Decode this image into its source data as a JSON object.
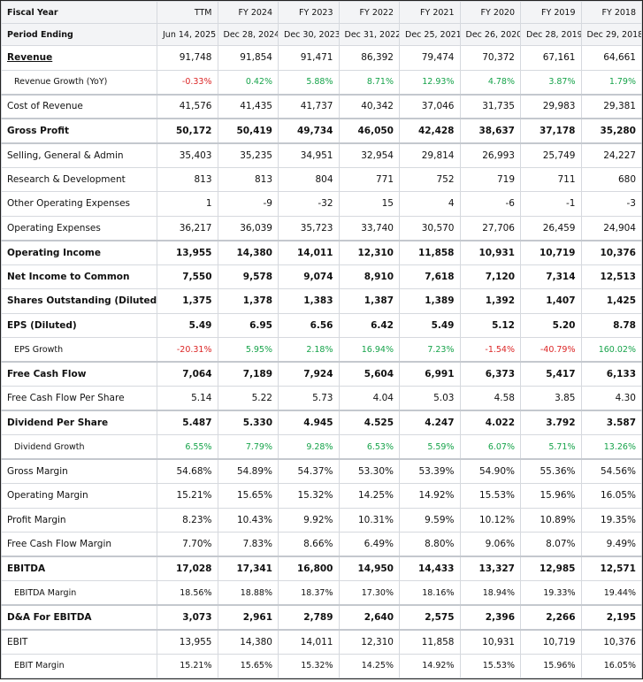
{
  "table": {
    "header": [
      [
        "Fiscal Year",
        "TTM",
        "FY 2024",
        "FY 2023",
        "FY 2022",
        "FY 2021",
        "FY 2020",
        "FY 2019",
        "FY 2018"
      ],
      [
        "Period Ending",
        "Jun 14, 2025",
        "Dec 28, 2024",
        "Dec 30, 2023",
        "Dec 31, 2022",
        "Dec 25, 2021",
        "Dec 26, 2020",
        "Dec 28, 2019",
        "Dec 29, 2018"
      ]
    ],
    "rows": [
      [
        "Revenue",
        "91,748",
        "91,854",
        "91,471",
        "86,392",
        "79,474",
        "70,372",
        "67,161",
        "64,661"
      ],
      [
        "Revenue Growth (YoY)",
        "-0.33%",
        "0.42%",
        "5.88%",
        "8.71%",
        "12.93%",
        "4.78%",
        "3.87%",
        "1.79%"
      ],
      [
        "Cost of Revenue",
        "41,576",
        "41,435",
        "41,737",
        "40,342",
        "37,046",
        "31,735",
        "29,983",
        "29,381"
      ],
      [
        "Gross Profit",
        "50,172",
        "50,419",
        "49,734",
        "46,050",
        "42,428",
        "38,637",
        "37,178",
        "35,280"
      ],
      [
        "Selling, General & Admin",
        "35,403",
        "35,235",
        "34,951",
        "32,954",
        "29,814",
        "26,993",
        "25,749",
        "24,227"
      ],
      [
        "Research & Development",
        "813",
        "813",
        "804",
        "771",
        "752",
        "719",
        "711",
        "680"
      ],
      [
        "Other Operating Expenses",
        "1",
        "-9",
        "-32",
        "15",
        "4",
        "-6",
        "-1",
        "-3"
      ],
      [
        "Operating Expenses",
        "36,217",
        "36,039",
        "35,723",
        "33,740",
        "30,570",
        "27,706",
        "26,459",
        "24,904"
      ],
      [
        "Operating Income",
        "13,955",
        "14,380",
        "14,011",
        "12,310",
        "11,858",
        "10,931",
        "10,719",
        "10,376"
      ],
      [
        "Net Income to Common",
        "7,550",
        "9,578",
        "9,074",
        "8,910",
        "7,618",
        "7,120",
        "7,314",
        "12,513"
      ],
      [
        "Shares Outstanding (Diluted)",
        "1,375",
        "1,378",
        "1,383",
        "1,387",
        "1,389",
        "1,392",
        "1,407",
        "1,425"
      ],
      [
        "EPS (Diluted)",
        "5.49",
        "6.95",
        "6.56",
        "6.42",
        "5.49",
        "5.12",
        "5.20",
        "8.78"
      ],
      [
        "EPS Growth",
        "-20.31%",
        "5.95%",
        "2.18%",
        "16.94%",
        "7.23%",
        "-1.54%",
        "-40.79%",
        "160.02%"
      ],
      [
        "Free Cash Flow",
        "7,064",
        "7,189",
        "7,924",
        "5,604",
        "6,991",
        "6,373",
        "5,417",
        "6,133"
      ],
      [
        "Free Cash Flow Per Share",
        "5.14",
        "5.22",
        "5.73",
        "4.04",
        "5.03",
        "4.58",
        "3.85",
        "4.30"
      ],
      [
        "Dividend Per Share",
        "5.487",
        "5.330",
        "4.945",
        "4.525",
        "4.247",
        "4.022",
        "3.792",
        "3.587"
      ],
      [
        "Dividend Growth",
        "6.55%",
        "7.79%",
        "9.28%",
        "6.53%",
        "5.59%",
        "6.07%",
        "5.71%",
        "13.26%"
      ],
      [
        "Gross Margin",
        "54.68%",
        "54.89%",
        "54.37%",
        "53.30%",
        "53.39%",
        "54.90%",
        "55.36%",
        "54.56%"
      ],
      [
        "Operating Margin",
        "15.21%",
        "15.65%",
        "15.32%",
        "14.25%",
        "14.92%",
        "15.53%",
        "15.96%",
        "16.05%"
      ],
      [
        "Profit Margin",
        "8.23%",
        "10.43%",
        "9.92%",
        "10.31%",
        "9.59%",
        "10.12%",
        "10.89%",
        "19.35%"
      ],
      [
        "Free Cash Flow Margin",
        "7.70%",
        "7.83%",
        "8.66%",
        "6.49%",
        "8.80%",
        "9.06%",
        "8.07%",
        "9.49%"
      ],
      [
        "EBITDA",
        "17,028",
        "17,341",
        "16,800",
        "14,950",
        "14,433",
        "13,327",
        "12,985",
        "12,571"
      ],
      [
        "EBITDA Margin",
        "18.56%",
        "18.88%",
        "18.37%",
        "17.30%",
        "18.16%",
        "18.94%",
        "19.33%",
        "19.44%"
      ],
      [
        "D&A For EBITDA",
        "3,073",
        "2,961",
        "2,789",
        "2,640",
        "2,575",
        "2,396",
        "2,266",
        "2,195"
      ],
      [
        "EBIT",
        "13,955",
        "14,380",
        "14,011",
        "12,310",
        "11,858",
        "10,931",
        "10,719",
        "10,376"
      ],
      [
        "EBIT Margin",
        "15.21%",
        "15.65%",
        "15.32%",
        "14.25%",
        "14.92%",
        "15.53%",
        "15.96%",
        "16.05%"
      ]
    ]
  }
}
